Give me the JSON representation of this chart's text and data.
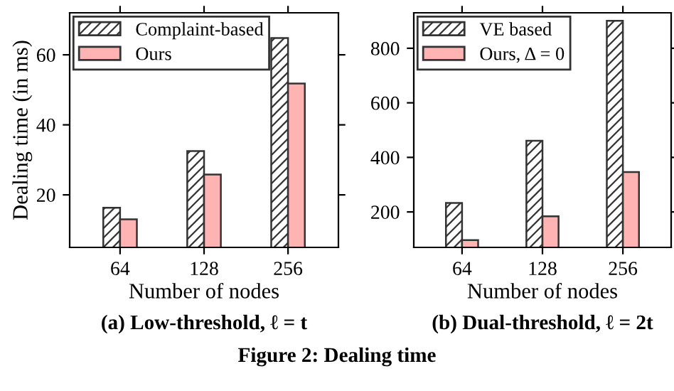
{
  "chart_data": [
    {
      "type": "bar",
      "title": "(a) Low-threshold, ℓ = t",
      "xlabel": "Number of nodes",
      "ylabel": "Dealing time (in ms)",
      "categories": [
        "64",
        "128",
        "256"
      ],
      "series": [
        {
          "name": "Complaint-based",
          "color": "#333333",
          "values": [
            16.3,
            32.5,
            64.8
          ]
        },
        {
          "name": "Ours",
          "color": "#ffb3b3",
          "values": [
            13,
            25.8,
            51.8
          ]
        }
      ],
      "ylim": [
        5,
        72
      ],
      "yticks": [
        20,
        40,
        60
      ],
      "grid": false,
      "legend": "top left"
    },
    {
      "type": "bar",
      "title": "(b) Dual-threshold, ℓ = 2t",
      "xlabel": "Number of nodes",
      "categories": [
        "64",
        "128",
        "256"
      ],
      "series": [
        {
          "name": "VE based",
          "color": "#333333",
          "values": [
            233,
            461,
            901
          ]
        },
        {
          "name": "Ours, Δ = 0",
          "color": "#ffb3b3",
          "values": [
            97,
            184,
            346
          ]
        }
      ],
      "ylim": [
        70,
        930
      ],
      "yticks": [
        200,
        400,
        600,
        800
      ],
      "grid": false,
      "legend": "top left",
      "annotations": [
        "Figure 2: Dealing time"
      ]
    }
  ]
}
